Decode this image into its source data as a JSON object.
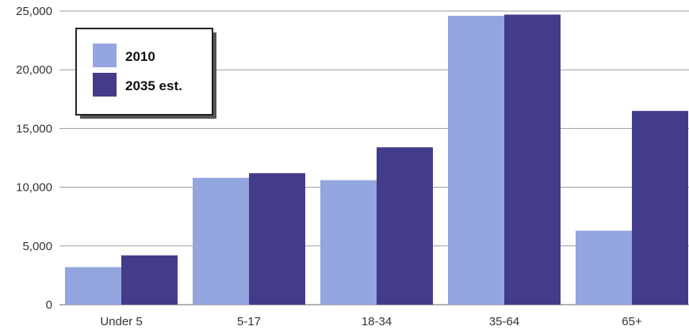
{
  "chart_data": {
    "type": "bar",
    "categories": [
      "Under 5",
      "5-17",
      "18-34",
      "35-64",
      "65+"
    ],
    "series": [
      {
        "name": "2010",
        "values": [
          3200,
          10800,
          10600,
          24600,
          6300
        ],
        "color": "#93a6e0"
      },
      {
        "name": "2035 est.",
        "values": [
          4200,
          11200,
          13400,
          24700,
          16500
        ],
        "color": "#433c8a"
      }
    ],
    "y_ticks": [
      "0",
      "5,000",
      "10,000",
      "15,000",
      "20,000",
      "25,000"
    ],
    "ylim": [
      0,
      25000
    ],
    "grid": true,
    "legend_position": "top-left"
  }
}
